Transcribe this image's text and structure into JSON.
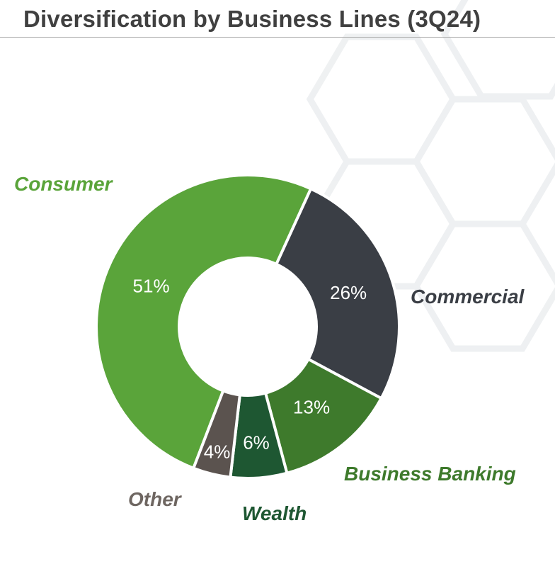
{
  "title": "Diversification by Business Lines (3Q24)",
  "colors": {
    "title": "#404040",
    "rule": "#a6a6a6"
  },
  "chart_data": {
    "type": "pie",
    "style": "donut",
    "title": "Diversification by Business Lines (3Q24)",
    "legend": "none",
    "slices": [
      {
        "label": "Consumer",
        "value": 51,
        "value_label": "51%",
        "color": "#5aa43a",
        "label_color": "#5aa43a"
      },
      {
        "label": "Commercial",
        "value": 26,
        "value_label": "26%",
        "color": "#3a3e45",
        "label_color": "#3a3e45"
      },
      {
        "label": "Business Banking",
        "value": 13,
        "value_label": "13%",
        "color": "#3e7a2c",
        "label_color": "#3e7a2c"
      },
      {
        "label": "Wealth",
        "value": 6,
        "value_label": "6%",
        "color": "#1e5732",
        "label_color": "#1e5732"
      },
      {
        "label": "Other",
        "value": 4,
        "value_label": "4%",
        "color": "#5b534f",
        "label_color": "#6e6661"
      }
    ]
  }
}
